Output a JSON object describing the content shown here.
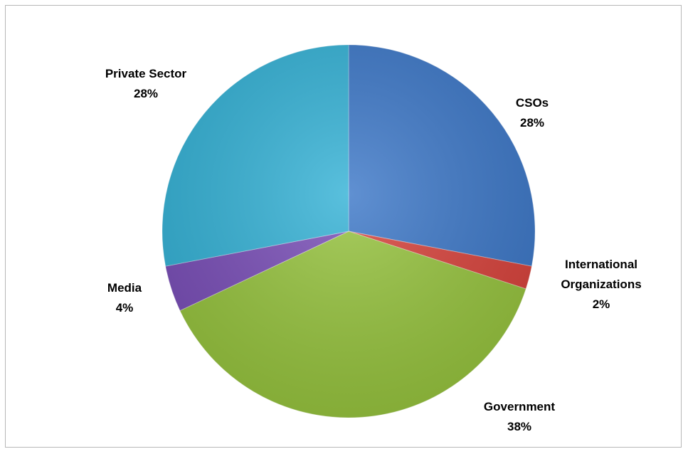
{
  "chart_data": {
    "type": "pie",
    "title": "",
    "labels": [
      "CSOs",
      "International Organizations",
      "Government",
      "Media",
      "Private Sector"
    ],
    "values": [
      28,
      2,
      38,
      4,
      28
    ],
    "percent_labels": [
      "28%",
      "2%",
      "38%",
      "4%",
      "28%"
    ],
    "colors": [
      "#3d78c8",
      "#d8433c",
      "#97c43f",
      "#7a4fb8",
      "#35b2d6"
    ],
    "start_angle_deg": 0,
    "direction": "clockwise",
    "legend": "none",
    "label_lines": [
      [
        "CSOs",
        "28%"
      ],
      [
        "International",
        "Organizations",
        "2%"
      ],
      [
        "Government",
        "38%"
      ],
      [
        "Media",
        "4%"
      ],
      [
        "Private Sector",
        "28%"
      ]
    ]
  }
}
